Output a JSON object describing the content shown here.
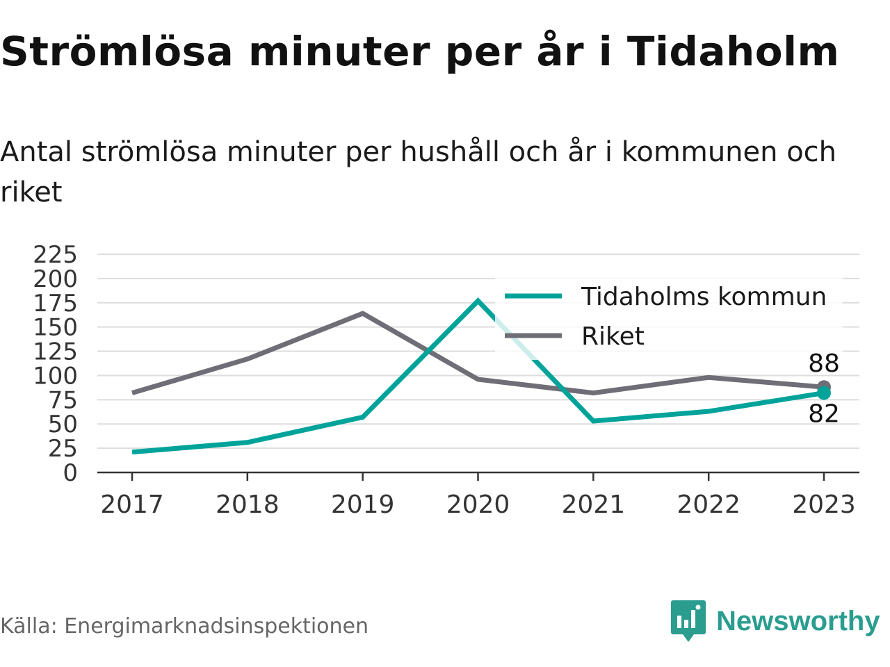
{
  "header": {
    "title": "Strömlösa minuter per år i Tidaholm",
    "subtitle": "Antal strömlösa minuter per hushåll och år i kommunen och riket"
  },
  "footer": {
    "source": "Källa: Energimarknadsinspektionen",
    "brand": "Newsworthy"
  },
  "colors": {
    "kommun": "#00a39a",
    "riket": "#6f6e77",
    "grid": "#dddddd",
    "brand": "#2a9d8f"
  },
  "chart_data": {
    "type": "line",
    "categories": [
      "2017",
      "2018",
      "2019",
      "2020",
      "2021",
      "2022",
      "2023"
    ],
    "series": [
      {
        "name": "Tidaholms kommun",
        "values": [
          21,
          31,
          57,
          177,
          53,
          63,
          82
        ]
      },
      {
        "name": "Riket",
        "values": [
          82,
          117,
          164,
          96,
          82,
          98,
          88
        ]
      }
    ],
    "end_labels": [
      "82",
      "88"
    ],
    "ylim": [
      0,
      225
    ],
    "yticks": [
      "0",
      "25",
      "50",
      "75",
      "100",
      "125",
      "150",
      "175",
      "200",
      "225"
    ],
    "grid": true,
    "legend_position": "top-right"
  }
}
